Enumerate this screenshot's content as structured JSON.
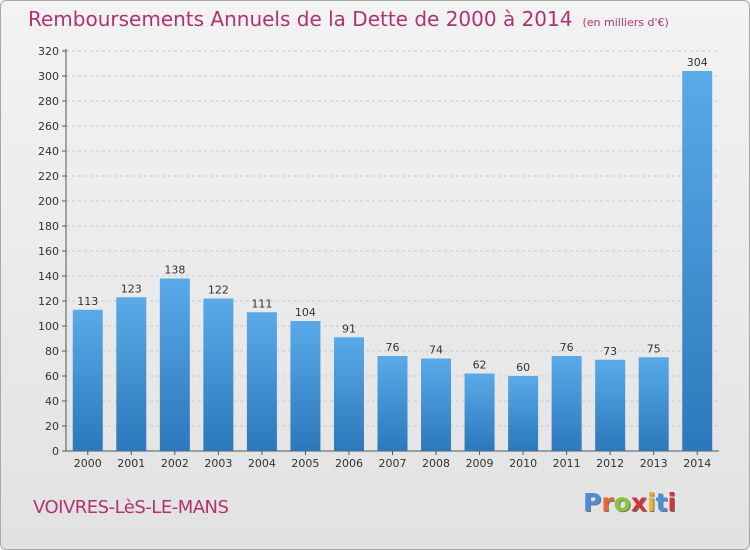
{
  "title": "Remboursements Annuels de la Dette de 2000 à 2014",
  "unit": "(en milliers d'€)",
  "commune": "VOIVRES-LèS-LE-MANS",
  "logo": "Proxiti",
  "colors": {
    "title": "#b0336f",
    "bar_light": "#5aaae8",
    "bar_dark": "#2b78bc",
    "logo_letters": [
      "#4a8fd6",
      "#e8662e",
      "#8cc43c",
      "#d6313a",
      "#f0b429",
      "#4a8fd6",
      "#d6313a"
    ]
  },
  "chart_data": {
    "type": "bar",
    "title": "Remboursements Annuels de la Dette de 2000 à 2014",
    "xlabel": "",
    "ylabel": "",
    "categories": [
      "2000",
      "2001",
      "2002",
      "2003",
      "2004",
      "2005",
      "2006",
      "2007",
      "2008",
      "2009",
      "2010",
      "2011",
      "2012",
      "2013",
      "2014"
    ],
    "values": [
      113,
      123,
      138,
      122,
      111,
      104,
      91,
      76,
      74,
      62,
      60,
      76,
      73,
      75,
      304
    ],
    "ylim": [
      0,
      320
    ],
    "yticks": [
      0,
      20,
      40,
      60,
      80,
      100,
      120,
      140,
      160,
      180,
      200,
      220,
      240,
      260,
      280,
      300,
      320
    ],
    "grid": true,
    "legend": "none"
  }
}
